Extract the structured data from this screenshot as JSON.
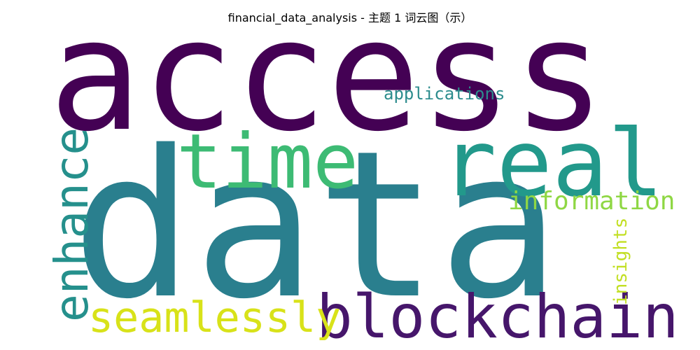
{
  "figure": {
    "title": "financial_data_analysis - 主题 1 词云图（示）"
  },
  "wordcloud": {
    "colormap": "viridis",
    "words": [
      {
        "id": "access",
        "text": "access",
        "color": "#440154"
      },
      {
        "id": "data",
        "text": "data",
        "color": "#2a7f8e"
      },
      {
        "id": "time",
        "text": "time",
        "color": "#3dbb74"
      },
      {
        "id": "real",
        "text": "real",
        "color": "#22998b"
      },
      {
        "id": "blockchain",
        "text": "blockchain",
        "color": "#46166b"
      },
      {
        "id": "seamlessly",
        "text": "seamlessly",
        "color": "#d8e219"
      },
      {
        "id": "enhance",
        "text": "enhance",
        "color": "#25908c"
      },
      {
        "id": "information",
        "text": "information",
        "color": "#8fd744"
      },
      {
        "id": "insights",
        "text": "insights",
        "color": "#c2df23"
      },
      {
        "id": "applications",
        "text": "applications",
        "color": "#2c8c8d"
      }
    ]
  }
}
